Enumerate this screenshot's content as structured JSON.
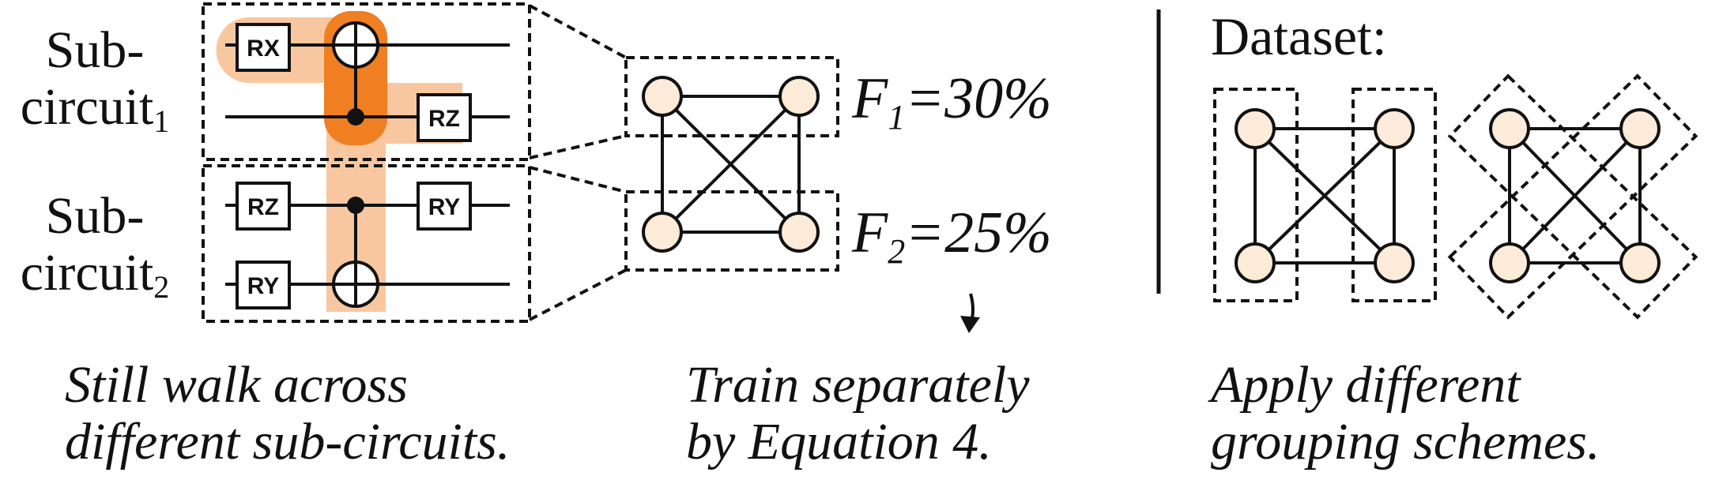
{
  "left": {
    "subcircuit1_label": {
      "line1": "Sub-",
      "line2": "circuit",
      "subscript": "1"
    },
    "subcircuit2_label": {
      "line1": "Sub-",
      "line2": "circuit",
      "subscript": "2"
    },
    "gates": [
      "RX",
      "RZ",
      "RZ",
      "RY",
      "RY"
    ],
    "caption_line1": "Still walk across",
    "caption_line2": "different sub-circuits."
  },
  "middle": {
    "f1": {
      "letter": "F",
      "subscript": "1",
      "value": "=30%"
    },
    "f2": {
      "letter": "F",
      "subscript": "2",
      "value": "=25%"
    },
    "caption_line1": "Train separately",
    "caption_line2": "by Equation 4."
  },
  "right": {
    "title": "Dataset:",
    "caption_line1": "Apply different",
    "caption_line2": "grouping schemes."
  },
  "colors": {
    "highlight_light": "#f9c79f",
    "highlight_dark": "#f07f22",
    "node_fill": "#fdebd9",
    "stroke": "#111111"
  }
}
